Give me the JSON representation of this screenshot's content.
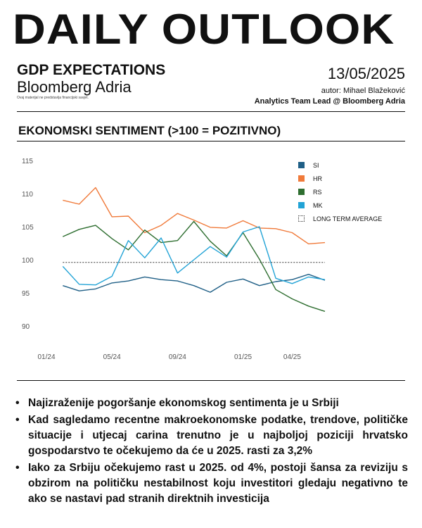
{
  "header": {
    "brand": "DAILY OUTLOOK",
    "subtitle": "GDP EXPECTATIONS",
    "publisher": "Bloomberg Adria",
    "disclaimer": "Ovaj materijal ne predstavlja financijski savjet.",
    "date": "13/05/2025",
    "author": "autor: Mihael Blažeković",
    "role": "Analytics Team Lead @ Bloomberg Adria"
  },
  "section": {
    "title": "EKONOMSKI SENTIMENT (>100 = POZITIVNO)"
  },
  "chart_data": {
    "type": "line",
    "title": "",
    "xlabel": "",
    "ylabel": "",
    "ylim": [
      90,
      115
    ],
    "yticks": [
      90,
      95,
      100,
      105,
      110,
      115
    ],
    "x": [
      "2024-01",
      "2024-02",
      "2024-03",
      "2024-04",
      "2024-05",
      "2024-06",
      "2024-07",
      "2024-08",
      "2024-09",
      "2024-10",
      "2024-11",
      "2024-12",
      "2025-01",
      "2025-02",
      "2025-03",
      "2025-04",
      "2025-05",
      "2025-06"
    ],
    "xticks": [
      {
        "at": "2024-01",
        "label": "01/24"
      },
      {
        "at": "2024-05",
        "label": "05/24"
      },
      {
        "at": "2024-09",
        "label": "09/24"
      },
      {
        "at": "2025-01",
        "label": "01/25"
      },
      {
        "at": "2025-04",
        "label": "04/25"
      }
    ],
    "grid": false,
    "legend_position": "top-right",
    "series": [
      {
        "name": "SI",
        "color": "#1f5f86",
        "x": [
          "2024-02",
          "2024-03",
          "2024-04",
          "2024-05",
          "2024-06",
          "2024-07",
          "2024-08",
          "2024-09",
          "2024-10",
          "2024-11",
          "2024-12",
          "2025-01",
          "2025-02",
          "2025-03",
          "2025-04",
          "2025-05",
          "2025-06"
        ],
        "values": [
          96.1,
          95.3,
          95.6,
          96.5,
          96.8,
          97.4,
          97.0,
          96.8,
          96.1,
          95.1,
          96.6,
          97.1,
          96.1,
          96.7,
          97.0,
          97.8,
          96.9
        ]
      },
      {
        "name": "HR",
        "color": "#f07a3a",
        "x": [
          "2024-02",
          "2024-03",
          "2024-04",
          "2024-05",
          "2024-06",
          "2024-07",
          "2024-08",
          "2024-09",
          "2024-10",
          "2024-11",
          "2024-12",
          "2025-01",
          "2025-02",
          "2025-03",
          "2025-04",
          "2025-05",
          "2025-06"
        ],
        "values": [
          109.0,
          108.4,
          110.9,
          106.5,
          106.6,
          104.1,
          105.2,
          107.0,
          106.0,
          104.9,
          104.8,
          105.9,
          104.8,
          104.7,
          104.1,
          102.4,
          102.6
        ]
      },
      {
        "name": "RS",
        "color": "#2e6e30",
        "x": [
          "2024-02",
          "2024-03",
          "2024-04",
          "2024-05",
          "2024-06",
          "2024-07",
          "2024-08",
          "2024-09",
          "2024-10",
          "2024-11",
          "2024-12",
          "2025-01",
          "2025-02",
          "2025-03",
          "2025-04",
          "2025-05",
          "2025-06"
        ],
        "values": [
          103.5,
          104.6,
          105.2,
          103.2,
          101.5,
          104.5,
          102.6,
          102.9,
          105.8,
          102.8,
          100.6,
          104.1,
          100.1,
          95.5,
          94.1,
          93.0,
          92.2
        ]
      },
      {
        "name": "MK",
        "color": "#22a3d6",
        "x": [
          "2024-02",
          "2024-03",
          "2024-04",
          "2024-05",
          "2024-06",
          "2024-07",
          "2024-08",
          "2024-09",
          "2024-10",
          "2024-11",
          "2024-12",
          "2025-01",
          "2025-02",
          "2025-03",
          "2025-04",
          "2025-05",
          "2025-06"
        ],
        "values": [
          99.0,
          96.3,
          96.2,
          97.5,
          102.9,
          100.3,
          103.3,
          98.0,
          100.0,
          102.0,
          100.4,
          104.2,
          105.0,
          97.2,
          96.4,
          97.4,
          97.0
        ]
      },
      {
        "name": "LONG TERM AVERAGE",
        "color": "#333333",
        "dashed": true,
        "x": [
          "2024-02",
          "2025-06"
        ],
        "values": [
          99.6,
          99.6
        ]
      }
    ]
  },
  "bullets": [
    "Najizraženije pogoršanje ekonomskog sentimenta je u Srbiji",
    "Kad sagledamo recentne makroekonomske podatke, trendove, političke situacije i utjecaj carina trenutno je u najboljoj poziciji hrvatsko gospodarstvo te očekujemo da će u 2025. rasti za 3,2%",
    "Iako za Srbiju očekujemo rast u 2025. od 4%, postoji šansa za reviziju s obzirom na političku nestabilnost koju investitori gledaju negativno te ako se nastavi pad stranih direktnih investicija"
  ]
}
